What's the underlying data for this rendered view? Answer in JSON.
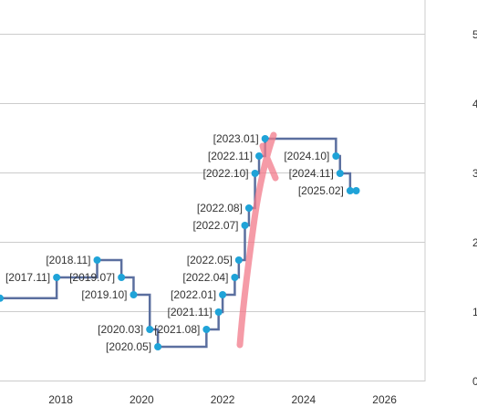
{
  "chart_data": {
    "type": "line",
    "step": true,
    "x_ticks": [
      "2018",
      "2020",
      "2022",
      "2024",
      "2026"
    ],
    "right_ticks": [
      "5",
      "4",
      "3",
      "2",
      "1",
      "0"
    ],
    "xlim": [
      2016.5,
      2027.0
    ],
    "ylim": [
      0,
      5.5
    ],
    "grid": true,
    "series": [
      {
        "points": [
          {
            "x": 2016.5,
            "y": 1.2,
            "label": ""
          },
          {
            "x": 2017.9,
            "y": 1.5,
            "label": "[2017.11]"
          },
          {
            "x": 2018.9,
            "y": 1.75,
            "label": "[2018.11]"
          },
          {
            "x": 2019.5,
            "y": 1.5,
            "label": "[2019.07]"
          },
          {
            "x": 2019.8,
            "y": 1.25,
            "label": "[2019.10]"
          },
          {
            "x": 2020.2,
            "y": 0.75,
            "label": "[2020.03]"
          },
          {
            "x": 2020.4,
            "y": 0.5,
            "label": "[2020.05]"
          },
          {
            "x": 2021.6,
            "y": 0.75,
            "label": "[2021.08]"
          },
          {
            "x": 2021.9,
            "y": 1.0,
            "label": "[2021.11]"
          },
          {
            "x": 2022.0,
            "y": 1.25,
            "label": "[2022.01]"
          },
          {
            "x": 2022.3,
            "y": 1.5,
            "label": "[2022.04]"
          },
          {
            "x": 2022.4,
            "y": 1.75,
            "label": "[2022.05]"
          },
          {
            "x": 2022.55,
            "y": 2.25,
            "label": "[2022.07]"
          },
          {
            "x": 2022.65,
            "y": 2.5,
            "label": "[2022.08]"
          },
          {
            "x": 2022.8,
            "y": 3.0,
            "label": "[2022.10]"
          },
          {
            "x": 2022.9,
            "y": 3.25,
            "label": "[2022.11]"
          },
          {
            "x": 2023.05,
            "y": 3.5,
            "label": "[2023.01]"
          },
          {
            "x": 2024.8,
            "y": 3.25,
            "label": "[2024.10]"
          },
          {
            "x": 2024.9,
            "y": 3.0,
            "label": "[2024.11]"
          },
          {
            "x": 2025.15,
            "y": 2.75,
            "label": "[2025.02]"
          },
          {
            "x": 2025.3,
            "y": 2.75,
            "label": ""
          }
        ]
      }
    ]
  }
}
